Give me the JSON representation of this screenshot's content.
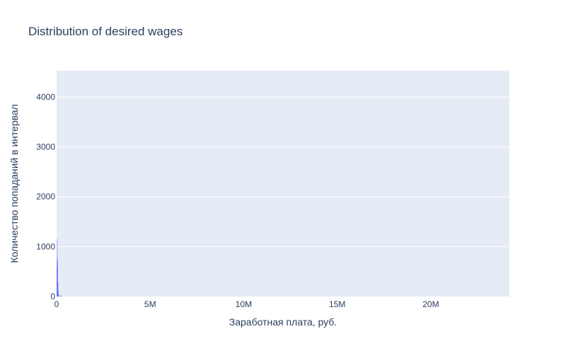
{
  "chart_data": {
    "type": "bar",
    "title": "Distribution of desired wages",
    "xlabel": "Заработная плата, руб.",
    "ylabel": "Количество попаданий в интервал",
    "xlim": [
      0,
      24200000
    ],
    "ylim": [
      0,
      4530
    ],
    "x_ticks": [
      {
        "value": 0,
        "label": "0"
      },
      {
        "value": 5000000,
        "label": "5M"
      },
      {
        "value": 10000000,
        "label": "10M"
      },
      {
        "value": 15000000,
        "label": "15M"
      },
      {
        "value": 20000000,
        "label": "20M"
      }
    ],
    "y_ticks": [
      {
        "value": 0,
        "label": "0"
      },
      {
        "value": 1000,
        "label": "1000"
      },
      {
        "value": 2000,
        "label": "2000"
      },
      {
        "value": 3000,
        "label": "3000"
      },
      {
        "value": 4000,
        "label": "4000"
      }
    ],
    "grid": true,
    "bin_width": 10000,
    "bins": [
      {
        "x": 10000,
        "count": 600
      },
      {
        "x": 20000,
        "count": 780
      },
      {
        "x": 30000,
        "count": 1150
      },
      {
        "x": 40000,
        "count": 740
      },
      {
        "x": 50000,
        "count": 700
      },
      {
        "x": 60000,
        "count": 300
      },
      {
        "x": 70000,
        "count": 270
      },
      {
        "x": 80000,
        "count": 120
      },
      {
        "x": 90000,
        "count": 60
      },
      {
        "x": 100000,
        "count": 40
      },
      {
        "x": 150000,
        "count": 25
      },
      {
        "x": 200000,
        "count": 15
      },
      {
        "x": 250000,
        "count": 20
      },
      {
        "x": 300000,
        "count": 10
      }
    ],
    "colors": {
      "bar": "#636efa",
      "plot_bg": "#e5ecf6",
      "grid": "#ffffff",
      "text": "#2a3f5f"
    }
  }
}
